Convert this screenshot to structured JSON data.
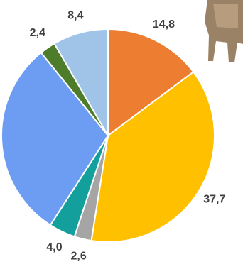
{
  "chart_data": {
    "type": "pie",
    "values": [
      14.8,
      37.7,
      2.6,
      4.0,
      30.1,
      2.4,
      8.4
    ],
    "value_labels": [
      "14,8",
      "37,7",
      "2,6",
      "4,0",
      null,
      "2,4",
      "8,4"
    ],
    "colors": [
      "#ed7d31",
      "#ffc000",
      "#a5a5a5",
      "#13a09c",
      "#6d9df3",
      "#4d7c2b",
      "#9fc4e8"
    ]
  }
}
